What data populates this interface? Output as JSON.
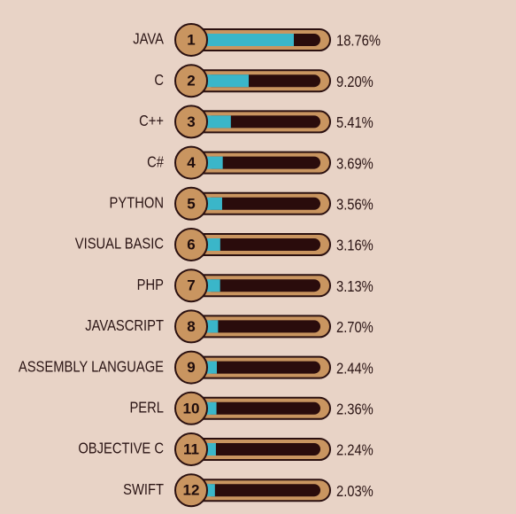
{
  "chart_data": {
    "type": "ranked-bar",
    "categories": [
      "JAVA",
      "C",
      "C++",
      "C#",
      "PYTHON",
      "VISUAL BASIC",
      "PHP",
      "JAVASCRIPT",
      "ASSEMBLY LANGUAGE",
      "PERL",
      "OBJECTIVE C",
      "SWIFT"
    ],
    "ranks": [
      1,
      2,
      3,
      4,
      5,
      6,
      7,
      8,
      9,
      10,
      11,
      12
    ],
    "values": [
      18.76,
      9.2,
      5.41,
      3.69,
      3.56,
      3.16,
      3.13,
      2.7,
      2.44,
      2.36,
      2.24,
      2.03
    ],
    "value_labels": [
      "18.76%",
      "9.20%",
      "5.41%",
      "3.69%",
      "3.56%",
      "3.16%",
      "3.13%",
      "2.70%",
      "2.44%",
      "2.36%",
      "2.24%",
      "2.03%"
    ],
    "color": "#3ab6c9"
  }
}
